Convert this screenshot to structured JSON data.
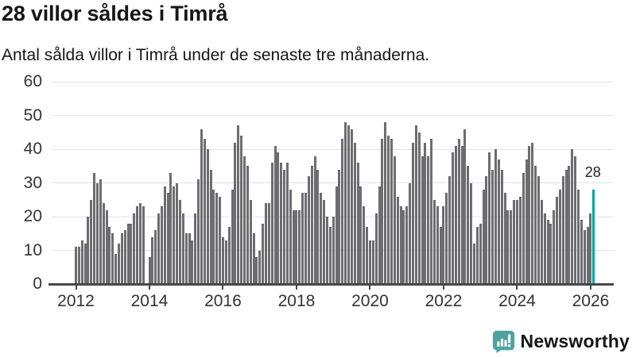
{
  "header": {
    "title": "28 villor såldes i Timrå",
    "subtitle": "Antal sålda villor i Timrå under de senaste tre månaderna."
  },
  "chart_data": {
    "type": "bar",
    "title": "28 villor såldes i Timrå",
    "subtitle": "Antal sålda villor i Timrå under de senaste tre månaderna.",
    "x_start": "2012-01",
    "x_interval": "month",
    "x_tick_labels": [
      "2012",
      "2014",
      "2016",
      "2018",
      "2020",
      "2022",
      "2024",
      "2026"
    ],
    "x_tick_every_months": 24,
    "y_ticks": [
      0,
      10,
      20,
      30,
      40,
      50,
      60
    ],
    "ylim": [
      0,
      60
    ],
    "grid": true,
    "values": [
      11,
      11,
      13,
      12,
      20,
      25,
      33,
      30,
      31,
      24,
      22,
      17,
      15,
      9,
      12,
      15,
      16,
      18,
      18,
      21,
      23,
      24,
      23,
      0,
      8,
      14,
      16,
      21,
      23,
      29,
      27,
      33,
      29,
      30,
      25,
      21,
      15,
      15,
      13,
      21,
      31,
      46,
      43,
      40,
      34,
      28,
      27,
      26,
      14,
      13,
      17,
      28,
      42,
      47,
      44,
      38,
      35,
      25,
      15,
      8,
      10,
      18,
      24,
      24,
      36,
      41,
      39,
      36,
      34,
      36,
      28,
      22,
      22,
      22,
      27,
      27,
      32,
      35,
      38,
      34,
      27,
      25,
      20,
      17,
      20,
      29,
      34,
      43,
      48,
      47,
      46,
      42,
      36,
      29,
      23,
      17,
      13,
      13,
      21,
      29,
      43,
      48,
      44,
      43,
      38,
      26,
      23,
      22,
      23,
      30,
      42,
      47,
      45,
      38,
      42,
      38,
      43,
      25,
      23,
      17,
      23,
      27,
      32,
      39,
      41,
      43,
      41,
      46,
      35,
      30,
      12,
      17,
      18,
      28,
      32,
      39,
      34,
      40,
      37,
      34,
      27,
      22,
      22,
      25,
      25,
      26,
      33,
      37,
      41,
      42,
      35,
      32,
      25,
      21,
      19,
      18,
      22,
      26,
      28,
      32,
      34,
      35,
      40,
      38,
      28,
      19,
      16,
      17,
      21,
      28
    ],
    "bar_color": "#6d6d71",
    "highlight_last": true,
    "highlight_color": "#00a1a6",
    "highlight_value_label": "28",
    "gridline_color": "#e3e3e3",
    "axis_color": "#474747"
  },
  "branding": {
    "logo_text": "Newsworthy",
    "logo_color": "#3ea39d"
  }
}
